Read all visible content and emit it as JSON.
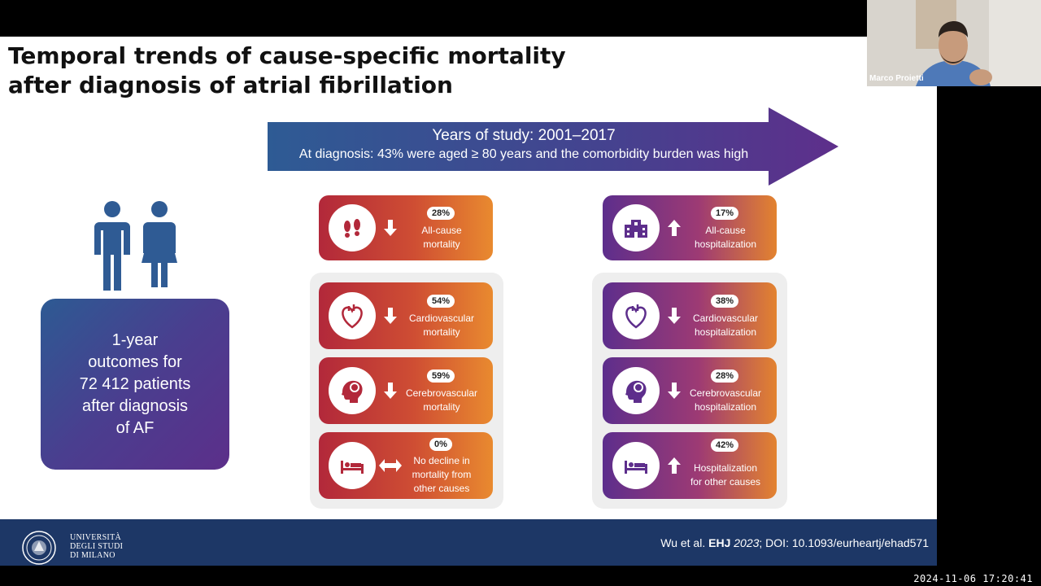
{
  "slide": {
    "title_line1": "Temporal trends of cause-specific mortality",
    "title_line2": "after diagnosis of atrial fibrillation",
    "banner_line1": "Years of study: 2001–2017",
    "banner_line2": "At diagnosis: 43% were aged ≥ 80 years and the comorbidity burden was high",
    "outcome_box": "1-year\noutcomes for\n72 412 patients\nafter diagnosis\nof AF",
    "mortality_cards": [
      {
        "percent": "28%",
        "label": "All-cause\nmortality",
        "trend": "down",
        "icon": "footprints-icon"
      },
      {
        "percent": "54%",
        "label": "Cardiovascular\nmortality",
        "trend": "down",
        "icon": "heart-icon"
      },
      {
        "percent": "59%",
        "label": "Cerebrovascular\nmortality",
        "trend": "down",
        "icon": "brain-icon"
      },
      {
        "percent": "0%",
        "label": "No decline in\nmortality from\nother causes",
        "trend": "flat",
        "icon": "hospital-bed-icon"
      }
    ],
    "hospitalization_cards": [
      {
        "percent": "17%",
        "label": "All-cause\nhospitalization",
        "trend": "up",
        "icon": "hospital-icon"
      },
      {
        "percent": "38%",
        "label": "Cardiovascular\nhospitalization",
        "trend": "down",
        "icon": "heart-icon"
      },
      {
        "percent": "28%",
        "label": "Cerebrovascular\nhospitalization",
        "trend": "down",
        "icon": "brain-icon"
      },
      {
        "percent": "42%",
        "label": "Hospitalization\nfor other causes",
        "trend": "up",
        "icon": "hospital-bed-icon"
      }
    ],
    "university_name": "UNIVERSITÀ\nDEGLI STUDI\nDI MILANO",
    "citation_prefix": "Wu et al. ",
    "citation_journal": "EHJ",
    "citation_year": "2023",
    "citation_rest": "; DOI: 10.1093/eurheartj/ehad571"
  },
  "webcam": {
    "presenter_name": "Marco Proietti"
  },
  "timestamp": "2024-11-06  17:20:41",
  "colors": {
    "banner": "#3b4fa0",
    "mortality_accent": "#b2283a",
    "hospitalization_accent": "#5d2e8c",
    "footer": "#1d3766"
  }
}
